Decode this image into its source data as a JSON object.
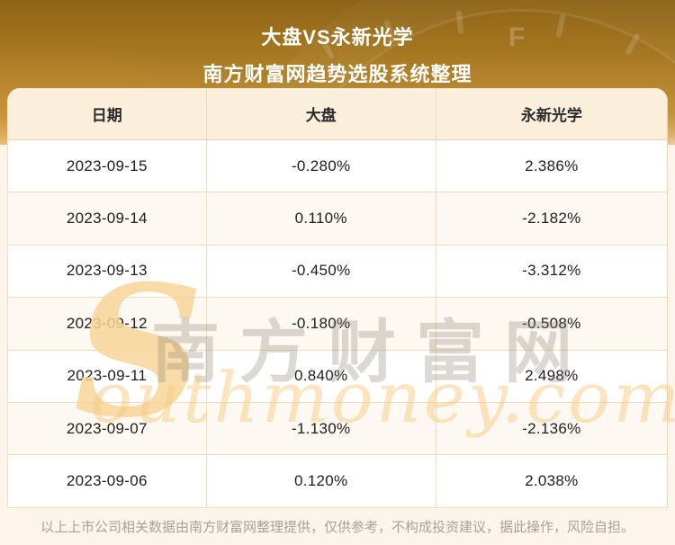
{
  "banner": {
    "title_line1": "大盘VS永新光学",
    "title_line2": "南方财富网趋势选股系统整理",
    "texture_letter": "F"
  },
  "table": {
    "headers": {
      "date": "日期",
      "market": "大盘",
      "stock": "永新光学"
    },
    "rows": [
      {
        "date": "2023-09-15",
        "market": "-0.280%",
        "stock": "2.386%"
      },
      {
        "date": "2023-09-14",
        "market": "0.110%",
        "stock": "-2.182%"
      },
      {
        "date": "2023-09-13",
        "market": "-0.450%",
        "stock": "-3.312%"
      },
      {
        "date": "2023-09-12",
        "market": "-0.180%",
        "stock": "-0.508%"
      },
      {
        "date": "2023-09-11",
        "market": "0.840%",
        "stock": "2.498%"
      },
      {
        "date": "2023-09-07",
        "market": "-1.130%",
        "stock": "-2.136%"
      },
      {
        "date": "2023-09-06",
        "market": "0.120%",
        "stock": "2.038%"
      }
    ]
  },
  "watermark": {
    "s_glyph": "S",
    "cn_text": "南方财富网",
    "en_text": "outhmoney.com"
  },
  "footer": {
    "disclaimer": "以上上市公司相关数据由南方财富网整理提供，仅供参考，不构成投资建议，据此操作，风险自担。"
  },
  "colors": {
    "banner_gold_top": "#8f6418",
    "banner_gold_bottom": "#eccb98",
    "header_bg": "#fbeedb",
    "row_bg": "#ffffff",
    "row_alt_bg": "#fdf8f1",
    "grid_line": "#eddcb9",
    "title_text": "#ffffff",
    "cell_text": "#1d1d1d",
    "footer_text": "#a9a198",
    "watermark_cn": "#8a8074",
    "watermark_en": "#f7c980",
    "page_bg": "#fcf5ec"
  },
  "chart_data": {
    "type": "table",
    "title": "大盘VS永新光学",
    "subtitle": "南方财富网趋势选股系统整理",
    "columns": [
      "日期",
      "大盘",
      "永新光学"
    ],
    "rows": [
      [
        "2023-09-15",
        "-0.280%",
        "2.386%"
      ],
      [
        "2023-09-14",
        "0.110%",
        "-2.182%"
      ],
      [
        "2023-09-13",
        "-0.450%",
        "-3.312%"
      ],
      [
        "2023-09-12",
        "-0.180%",
        "-0.508%"
      ],
      [
        "2023-09-11",
        "0.840%",
        "2.498%"
      ],
      [
        "2023-09-07",
        "-1.130%",
        "-2.136%"
      ],
      [
        "2023-09-06",
        "0.120%",
        "2.038%"
      ]
    ],
    "source": "南方财富网",
    "legend_position": "none",
    "grid": true
  }
}
